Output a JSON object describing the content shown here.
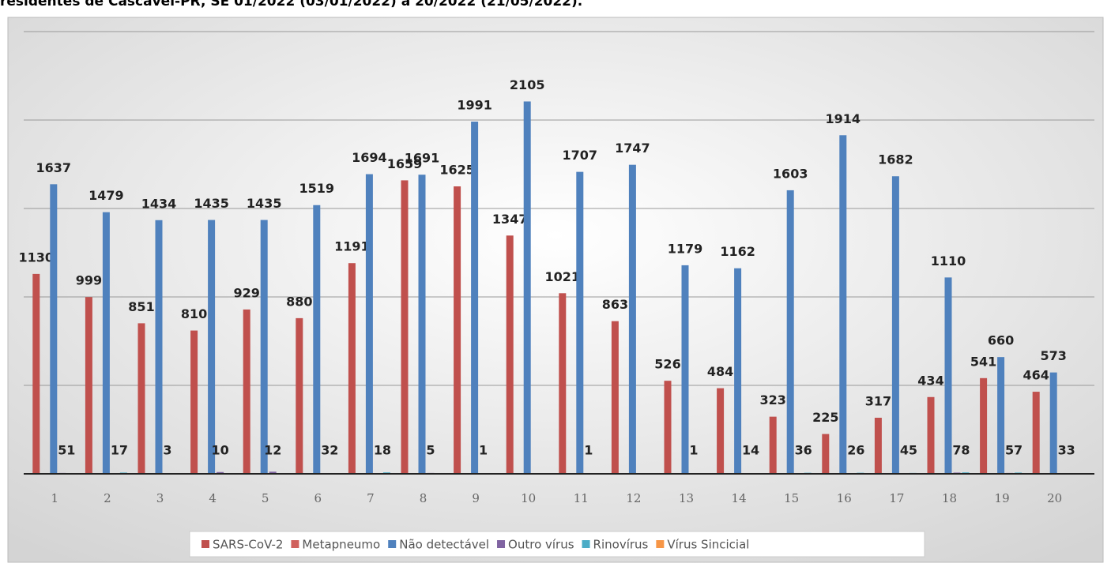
{
  "chart_data": {
    "type": "bar",
    "title": "residentes de Cascavel-PR, SE 01/2022 (03/01/2022) a 20/2022 (21/05/2022).",
    "categories": [
      "1",
      "2",
      "3",
      "4",
      "5",
      "6",
      "7",
      "8",
      "9",
      "10",
      "11",
      "12",
      "13",
      "14",
      "15",
      "16",
      "17",
      "18",
      "19",
      "20"
    ],
    "series": [
      {
        "name": "SARS-CoV-2",
        "color": "#c0504d",
        "values": [
          1130,
          999,
          851,
          810,
          929,
          880,
          1191,
          1659,
          1625,
          1347,
          1021,
          863,
          526,
          484,
          323,
          225,
          317,
          434,
          541,
          464
        ]
      },
      {
        "name": "Metapneumo",
        "color": "#d0605c",
        "values": [
          null,
          null,
          null,
          null,
          null,
          null,
          null,
          null,
          null,
          null,
          null,
          null,
          null,
          null,
          null,
          null,
          null,
          null,
          null,
          null
        ]
      },
      {
        "name": "Não detectável",
        "color": "#4f81bd",
        "values": [
          1637,
          1479,
          1434,
          1435,
          1435,
          1519,
          1694,
          1691,
          1991,
          2105,
          1707,
          1747,
          1179,
          1162,
          1603,
          1914,
          1682,
          1110,
          660,
          573
        ]
      },
      {
        "name": "Outro vírus",
        "color": "#8064a2",
        "values": [
          5,
          1,
          3,
          10,
          12,
          3,
          1,
          5,
          1,
          null,
          1,
          null,
          1,
          1,
          3,
          2,
          4,
          7,
          5,
          3
        ]
      },
      {
        "name": "Rinovírus",
        "color": "#4bacc6",
        "values": [
          1,
          7,
          null,
          null,
          null,
          2,
          8,
          null,
          null,
          null,
          null,
          null,
          null,
          4,
          6,
          6,
          5,
          8,
          7,
          3
        ]
      },
      {
        "name": "Vírus Sincicial",
        "color": "#f79646",
        "values": [
          null,
          null,
          null,
          null,
          null,
          null,
          null,
          null,
          null,
          null,
          null,
          null,
          null,
          null,
          null,
          null,
          null,
          null,
          null,
          null
        ]
      }
    ],
    "ylim": [
      0,
      2500
    ],
    "yticks": [
      0,
      500,
      1000,
      1500,
      2000,
      2500
    ],
    "grid": true
  }
}
